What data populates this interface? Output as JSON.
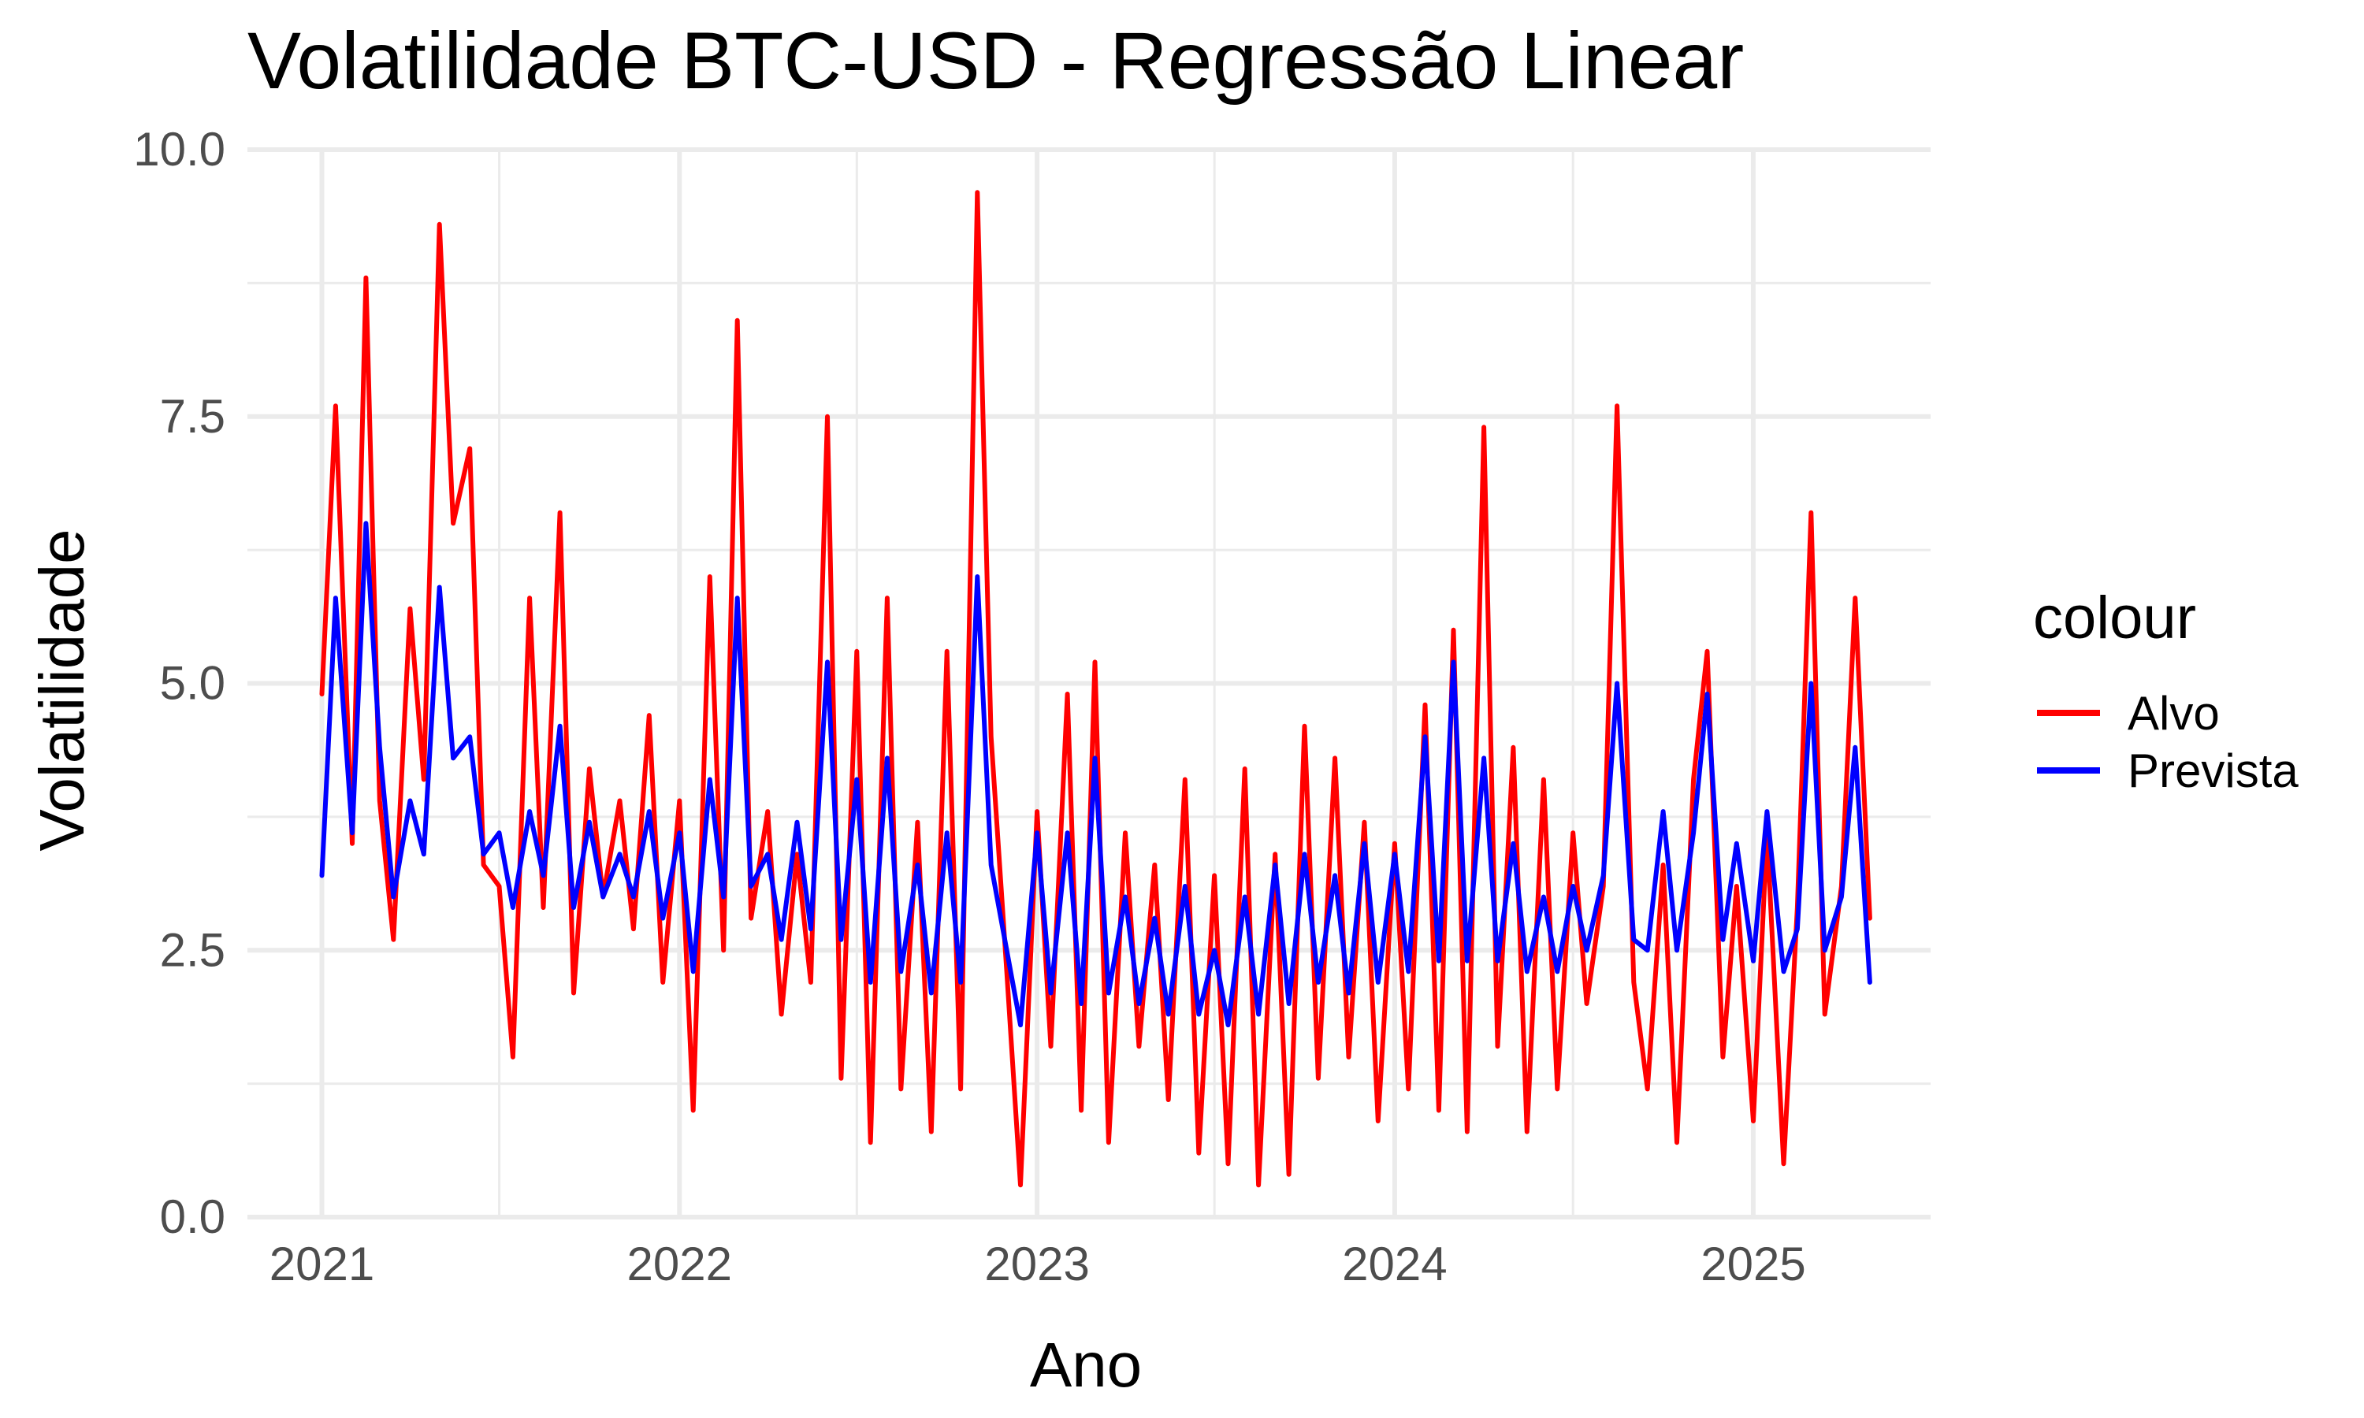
{
  "chart_data": {
    "type": "line",
    "title": "Volatilidade BTC-USD - Regressão Linear",
    "xlabel": "Ano",
    "ylabel": "Volatilidade",
    "xlim": [
      "2020-10-17",
      "2025-07-01"
    ],
    "ylim": [
      0,
      10
    ],
    "x_ticks": [
      "2021",
      "2022",
      "2023",
      "2024",
      "2025"
    ],
    "y_ticks": [
      "0.0",
      "2.5",
      "5.0",
      "7.5",
      "10.0"
    ],
    "grid": true,
    "legend": {
      "title": "colour",
      "position": "right"
    },
    "x": [
      "2021-01-01",
      "2021-01-15",
      "2021-02-01",
      "2021-02-15",
      "2021-03-01",
      "2021-03-15",
      "2021-04-01",
      "2021-04-15",
      "2021-05-01",
      "2021-05-15",
      "2021-06-01",
      "2021-06-15",
      "2021-07-01",
      "2021-07-15",
      "2021-08-01",
      "2021-08-15",
      "2021-09-01",
      "2021-09-15",
      "2021-10-01",
      "2021-10-15",
      "2021-11-01",
      "2021-11-15",
      "2021-12-01",
      "2021-12-15",
      "2022-01-01",
      "2022-01-15",
      "2022-02-01",
      "2022-02-15",
      "2022-03-01",
      "2022-03-15",
      "2022-04-01",
      "2022-04-15",
      "2022-05-01",
      "2022-05-15",
      "2022-06-01",
      "2022-06-15",
      "2022-07-01",
      "2022-07-15",
      "2022-08-01",
      "2022-08-15",
      "2022-09-01",
      "2022-09-15",
      "2022-10-01",
      "2022-10-15",
      "2022-11-01",
      "2022-11-15",
      "2022-12-01",
      "2022-12-15",
      "2023-01-01",
      "2023-01-15",
      "2023-02-01",
      "2023-02-15",
      "2023-03-01",
      "2023-03-15",
      "2023-04-01",
      "2023-04-15",
      "2023-05-01",
      "2023-05-15",
      "2023-06-01",
      "2023-06-15",
      "2023-07-01",
      "2023-07-15",
      "2023-08-01",
      "2023-08-15",
      "2023-09-01",
      "2023-09-15",
      "2023-10-01",
      "2023-10-15",
      "2023-11-01",
      "2023-11-15",
      "2023-12-01",
      "2023-12-15",
      "2024-01-01",
      "2024-01-15",
      "2024-02-01",
      "2024-02-15",
      "2024-03-01",
      "2024-03-15",
      "2024-04-01",
      "2024-04-15",
      "2024-05-01",
      "2024-05-15",
      "2024-06-01",
      "2024-06-15",
      "2024-07-01",
      "2024-07-15",
      "2024-08-01",
      "2024-08-15",
      "2024-09-01",
      "2024-09-15",
      "2024-10-01",
      "2024-10-15",
      "2024-11-01",
      "2024-11-15",
      "2024-12-01",
      "2024-12-15",
      "2025-01-01",
      "2025-01-15",
      "2025-02-01",
      "2025-02-15",
      "2025-03-01",
      "2025-03-15",
      "2025-04-01",
      "2025-04-15",
      "2025-04-30"
    ],
    "series": [
      {
        "name": "Alvo",
        "color": "#ff0000",
        "values": [
          4.9,
          7.6,
          3.5,
          8.8,
          3.9,
          2.6,
          5.7,
          4.1,
          9.3,
          6.5,
          7.2,
          3.3,
          3.1,
          1.5,
          5.8,
          2.9,
          6.6,
          2.1,
          4.2,
          3.0,
          3.9,
          2.7,
          4.7,
          2.2,
          3.9,
          1.0,
          6.0,
          2.5,
          8.4,
          2.8,
          3.8,
          1.9,
          3.4,
          2.2,
          7.5,
          1.3,
          5.3,
          0.7,
          5.8,
          1.2,
          3.7,
          0.8,
          5.3,
          1.2,
          9.6,
          4.5,
          2.3,
          0.3,
          3.8,
          1.6,
          4.9,
          1.0,
          5.2,
          0.7,
          3.6,
          1.6,
          3.3,
          1.1,
          4.1,
          0.6,
          3.2,
          0.5,
          4.2,
          0.3,
          3.4,
          0.4,
          4.6,
          1.3,
          4.3,
          1.5,
          3.7,
          0.9,
          3.5,
          1.2,
          4.8,
          1.0,
          5.5,
          0.8,
          7.4,
          1.6,
          4.4,
          0.8,
          4.1,
          1.2,
          3.6,
          2.0,
          3.1,
          7.6,
          2.2,
          1.2,
          3.3,
          0.7,
          4.1,
          5.3,
          1.5,
          3.1,
          0.9,
          3.6,
          0.5,
          2.9,
          6.6,
          1.9,
          3.1,
          5.8,
          2.8
        ]
      },
      {
        "name": "Prevista",
        "color": "#0000ff",
        "values": [
          3.2,
          5.8,
          3.6,
          6.5,
          4.4,
          3.0,
          3.9,
          3.4,
          5.9,
          4.3,
          4.5,
          3.4,
          3.6,
          2.9,
          3.8,
          3.2,
          4.6,
          2.9,
          3.7,
          3.0,
          3.4,
          3.0,
          3.8,
          2.8,
          3.6,
          2.3,
          4.1,
          3.0,
          5.8,
          3.1,
          3.4,
          2.6,
          3.7,
          2.7,
          5.2,
          2.6,
          4.1,
          2.2,
          4.3,
          2.3,
          3.3,
          2.1,
          3.6,
          2.2,
          6.0,
          3.3,
          2.5,
          1.8,
          3.6,
          2.1,
          3.6,
          2.0,
          4.3,
          2.1,
          3.0,
          2.0,
          2.8,
          1.9,
          3.1,
          1.9,
          2.5,
          1.8,
          3.0,
          1.9,
          3.3,
          2.0,
          3.4,
          2.2,
          3.2,
          2.1,
          3.5,
          2.2,
          3.4,
          2.3,
          4.5,
          2.4,
          5.2,
          2.4,
          4.3,
          2.4,
          3.5,
          2.3,
          3.0,
          2.3,
          3.1,
          2.5,
          3.2,
          5.0,
          2.6,
          2.5,
          3.8,
          2.5,
          3.6,
          4.9,
          2.6,
          3.5,
          2.4,
          3.8,
          2.3,
          2.7,
          5.0,
          2.5,
          3.0,
          4.4,
          2.2
        ]
      }
    ]
  }
}
